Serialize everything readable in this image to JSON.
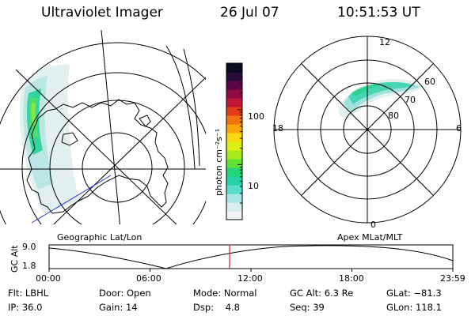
{
  "header": {
    "instrument": "Ultraviolet Imager",
    "date": "26 Jul 07",
    "time": "10:51:53 UT"
  },
  "left_panel": {
    "label": "Geographic Lat/Lon"
  },
  "right_panel": {
    "label": "Apex MLat/MLT",
    "mlt_labels": [
      "12",
      "18",
      "6",
      "0"
    ],
    "mlat_labels": [
      "60",
      "70",
      "80"
    ]
  },
  "colorbar": {
    "unit_label": "photon cm⁻²s⁻¹",
    "tick_labels": [
      "100",
      "10"
    ],
    "ticks": [
      100,
      10
    ],
    "colors": [
      "#f0f4f4",
      "#d6eeee",
      "#a6e6e6",
      "#55dccc",
      "#24d2a8",
      "#22d67a",
      "#5ce232",
      "#a6ea1a",
      "#dcee12",
      "#f6d80c",
      "#fca60a",
      "#f27410",
      "#e23c18",
      "#c41434",
      "#900a44",
      "#5a0646",
      "#2a0a3a",
      "#0a0a22"
    ]
  },
  "altitude_plot": {
    "y_label": "GC Alt",
    "y_ticks": [
      "9.0",
      "1.8"
    ],
    "x_ticks": [
      "00:00",
      "06:00",
      "12:00",
      "18:00",
      "23:59"
    ],
    "current_time_marker": "10:51"
  },
  "status": {
    "row1": [
      {
        "key": "Flt:",
        "value": "LBHL"
      },
      {
        "key": "Door:",
        "value": "Open"
      },
      {
        "key": "Mode:",
        "value": "Normal"
      },
      {
        "key": "GC Alt:",
        "value": "6.3 Re"
      },
      {
        "key": "GLat:",
        "value": "−81.3"
      }
    ],
    "row2": [
      {
        "key": "IP:",
        "value": "36.0"
      },
      {
        "key": "Gain:",
        "value": "14"
      },
      {
        "key": "Dsp:",
        "value": "4.8"
      },
      {
        "key": "Seq:",
        "value": "39"
      },
      {
        "key": "GLon:",
        "value": "118.1"
      }
    ]
  }
}
